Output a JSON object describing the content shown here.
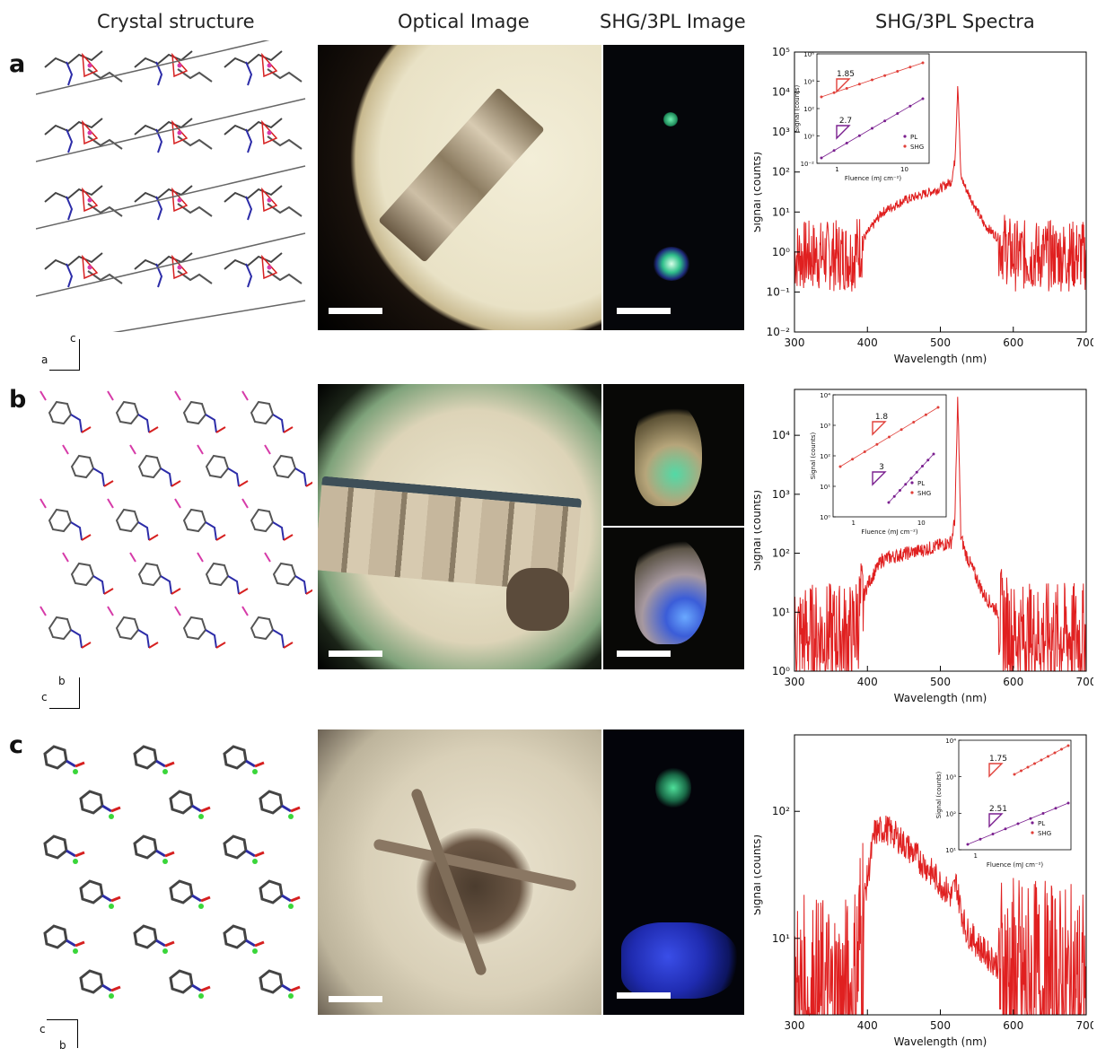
{
  "headers": {
    "crystal": "Crystal structure",
    "optical": "Optical Image",
    "shg": "SHG/3PL Image",
    "spectra": "SHG/3PL Spectra"
  },
  "rows": [
    {
      "letter": "a",
      "axis_vertical": "c",
      "axis_horizontal": "a"
    },
    {
      "letter": "b",
      "axis_vertical": "b",
      "axis_horizontal": "c"
    },
    {
      "letter": "c",
      "axis_vertical": "b",
      "axis_horizontal": "c"
    }
  ],
  "colors": {
    "spectrum": "#e02020",
    "pl": "#7a1f8f",
    "shg_fit": "#e0403a",
    "metal_a": "#d63aa8",
    "metal_c": "#3ad63a",
    "nitrogen": "#2c2ca8",
    "oxygen": "#d62020"
  },
  "chart_data": [
    {
      "type": "line",
      "panel": "a",
      "xlabel": "Wavelength (nm)",
      "ylabel": "Signal (counts)",
      "xlim": [
        300,
        700
      ],
      "ylim": [
        0.01,
        100000
      ],
      "yscale": "log",
      "xticks": [
        "300",
        "400",
        "500",
        "600",
        "700"
      ],
      "yticks": [
        "10⁻²",
        "10⁻¹",
        "10⁰",
        "10¹",
        "10²",
        "10³",
        "10⁴",
        "10⁵"
      ],
      "series": [
        {
          "x": [
            300,
            380,
            400,
            420,
            450,
            480,
            500,
            515,
            520,
            524,
            528,
            535,
            560,
            600,
            700
          ],
          "y": [
            1,
            1,
            3,
            10,
            20,
            30,
            40,
            60,
            200,
            20000,
            80,
            40,
            5,
            1,
            1
          ]
        }
      ],
      "inset": {
        "xlabel": "Fluence (mJ cm⁻²)",
        "ylabel": "Signal (counts)",
        "yticks": [
          "10⁻²",
          "10⁰",
          "10²",
          "10⁴",
          "10⁶"
        ],
        "xticks": [
          "1",
          "10"
        ],
        "slopes": [
          {
            "label": "1.85",
            "series": "SHG"
          },
          {
            "label": "2.7",
            "series": "PL"
          }
        ],
        "legend": [
          "PL",
          "SHG"
        ]
      }
    },
    {
      "type": "line",
      "panel": "b",
      "xlabel": "Wavelength (nm)",
      "ylabel": "Signal (counts)",
      "xlim": [
        300,
        700
      ],
      "ylim": [
        1,
        60000
      ],
      "yscale": "log",
      "xticks": [
        "300",
        "400",
        "500",
        "600",
        "700"
      ],
      "yticks": [
        "10⁰",
        "10¹",
        "10²",
        "10³",
        "10⁴"
      ],
      "series": [
        {
          "x": [
            300,
            380,
            400,
            420,
            450,
            480,
            500,
            515,
            520,
            524,
            528,
            535,
            560,
            600,
            700
          ],
          "y": [
            5,
            5,
            30,
            80,
            100,
            120,
            140,
            160,
            400,
            50000,
            200,
            100,
            20,
            5,
            5
          ]
        }
      ],
      "inset": {
        "xlabel": "Fluence (mJ cm⁻²)",
        "ylabel": "Signal (counts)",
        "yticks": [
          "10⁰",
          "10¹",
          "10²",
          "10³",
          "10⁴"
        ],
        "xticks": [
          "1",
          "10"
        ],
        "slopes": [
          {
            "label": "1.8",
            "series": "SHG"
          },
          {
            "label": "3",
            "series": "PL"
          }
        ],
        "legend": [
          "PL",
          "SHG"
        ]
      }
    },
    {
      "type": "line",
      "panel": "c",
      "xlabel": "Wavelength (nm)",
      "ylabel": "Signal (counts)",
      "xlim": [
        300,
        700
      ],
      "ylim": [
        2.5,
        400
      ],
      "yscale": "log",
      "xticks": [
        "300",
        "400",
        "500",
        "600",
        "700"
      ],
      "yticks": [
        "10¹",
        "10²"
      ],
      "series": [
        {
          "x": [
            300,
            380,
            395,
            410,
            425,
            440,
            460,
            480,
            500,
            515,
            522,
            526,
            535,
            560,
            600,
            700
          ],
          "y": [
            3.5,
            3.5,
            20,
            70,
            75,
            65,
            50,
            38,
            28,
            22,
            28,
            20,
            12,
            8,
            5,
            4
          ]
        }
      ],
      "inset": {
        "xlabel": "Fluence (mJ cm⁻²)",
        "ylabel": "Signal (counts)",
        "yticks": [
          "10¹",
          "10²",
          "10³",
          "10⁴"
        ],
        "xticks": [
          "1"
        ],
        "slopes": [
          {
            "label": "1.75",
            "series": "SHG"
          },
          {
            "label": "2.51",
            "series": "PL"
          }
        ],
        "legend": [
          "PL",
          "SHG"
        ]
      }
    }
  ]
}
